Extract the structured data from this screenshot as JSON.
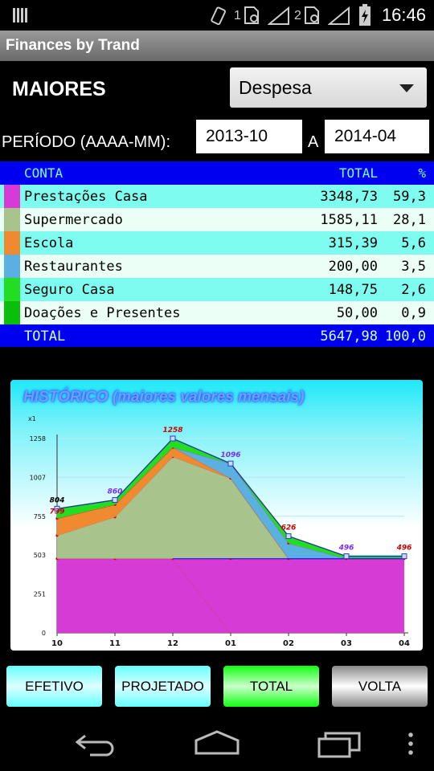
{
  "status_bar": {
    "time": "16:46",
    "sim1": "1",
    "sim2": "2"
  },
  "app": {
    "title": "Finances by Trand"
  },
  "header": {
    "title": "MAIORES",
    "type_select": "Despesa"
  },
  "period": {
    "label": "PERÍODO (AAAA-MM):",
    "start": "2013-10",
    "separator": "A",
    "end": "2014-04"
  },
  "table": {
    "headers": {
      "account": "CONTA",
      "total": "TOTAL",
      "percent": "%"
    },
    "rows": [
      {
        "account": "Prestações Casa",
        "total": "3348,73",
        "percent": "59,3",
        "color": "#d63bd6"
      },
      {
        "account": "Supermercado",
        "total": "1585,11",
        "percent": "28,1",
        "color": "#a8c48c"
      },
      {
        "account": "Escola",
        "total": "315,39",
        "percent": "5,6",
        "color": "#f08a30"
      },
      {
        "account": "Restaurantes",
        "total": "200,00",
        "percent": "3,5",
        "color": "#5ab0e0"
      },
      {
        "account": "Seguro Casa",
        "total": "148,75",
        "percent": "2,6",
        "color": "#22dd22"
      },
      {
        "account": "Doações e Presentes",
        "total": "50,00",
        "percent": "0,9",
        "color": "#0abf0a"
      }
    ],
    "total": {
      "label": "TOTAL",
      "total": "5647,98",
      "percent": "100,0"
    }
  },
  "chart_data": {
    "type": "area",
    "title": "HISTÓRICO (maiores valores mensais)",
    "y_unit_label": "x1",
    "ylim": [
      0,
      1258
    ],
    "yticks": [
      "0",
      "251",
      "503",
      "755",
      "1007",
      "1258"
    ],
    "categories": [
      "10",
      "11",
      "12",
      "01",
      "02",
      "03",
      "04"
    ],
    "stacked_totals": [
      804,
      860,
      1258,
      1096,
      626,
      496,
      496
    ],
    "total_labels": [
      "804",
      "860",
      "1258",
      "1096",
      "626",
      "496",
      "496"
    ],
    "secondary_labels": [
      "739",
      "",
      "",
      "",
      "",
      "",
      ""
    ],
    "series": [
      {
        "values": [
          480,
          480,
          480,
          0,
          0,
          0,
          0
        ],
        "color": "#d63bd6"
      },
      {
        "values": [
          0,
          0,
          0,
          480,
          480,
          480,
          480
        ],
        "color": "#d63bd6"
      },
      {
        "values": [
          150,
          270,
          660,
          520,
          0,
          0,
          0
        ],
        "color": "#a8c48c"
      },
      {
        "values": [
          110,
          80,
          60,
          0,
          0,
          0,
          0
        ],
        "color": "#f08a30"
      },
      {
        "values": [
          0,
          0,
          0,
          96,
          100,
          0,
          0
        ],
        "color": "#5ab0e0"
      },
      {
        "values": [
          64,
          30,
          58,
          0,
          46,
          16,
          16
        ],
        "color": "#22dd22"
      }
    ]
  },
  "buttons": {
    "efetivo": "EFETIVO",
    "projetado": "PROJETADO",
    "total": "TOTAL",
    "volta": "VOLTA"
  },
  "nav": {
    "back": "back-icon",
    "home": "home-icon",
    "recents": "recents-icon",
    "menu": "menu-icon"
  }
}
